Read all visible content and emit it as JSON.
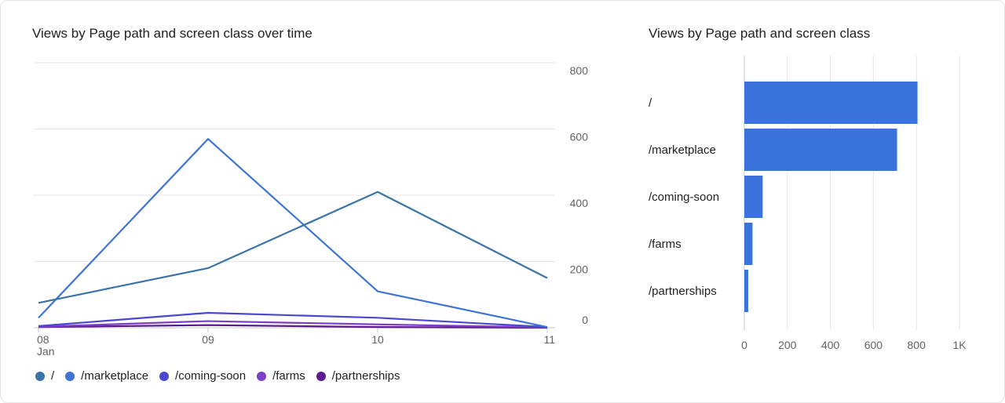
{
  "chart_data": [
    {
      "type": "line",
      "title": "Views by Page path and screen class over time",
      "x": [
        "08",
        "09",
        "10",
        "11"
      ],
      "x_sublabel": "Jan",
      "ylim": [
        0,
        800
      ],
      "y_ticks": [
        "800",
        "600",
        "400",
        "200",
        "0"
      ],
      "grid": true,
      "legend_position": "bottom-left",
      "series": [
        {
          "name": "/",
          "color": "#3a74a8",
          "values": [
            75,
            180,
            410,
            150
          ]
        },
        {
          "name": "/marketplace",
          "color": "#3d74d6",
          "values": [
            30,
            570,
            110,
            2
          ]
        },
        {
          "name": "/coming-soon",
          "color": "#4a47d1",
          "values": [
            5,
            45,
            30,
            2
          ]
        },
        {
          "name": "/farms",
          "color": "#7d3fc8",
          "values": [
            3,
            20,
            10,
            1
          ]
        },
        {
          "name": "/partnerships",
          "color": "#5c1a8e",
          "values": [
            2,
            8,
            2,
            0
          ]
        }
      ]
    },
    {
      "type": "bar",
      "orientation": "horizontal",
      "title": "Views by Page path and screen class",
      "categories": [
        "/",
        "/marketplace",
        "/coming-soon",
        "/farms",
        "/partnerships"
      ],
      "values": [
        805,
        710,
        85,
        38,
        18
      ],
      "xlim": [
        0,
        1000
      ],
      "x_ticks": [
        "0",
        "200",
        "400",
        "600",
        "800",
        "1K"
      ],
      "grid": true,
      "color": "#3b73dc"
    }
  ]
}
